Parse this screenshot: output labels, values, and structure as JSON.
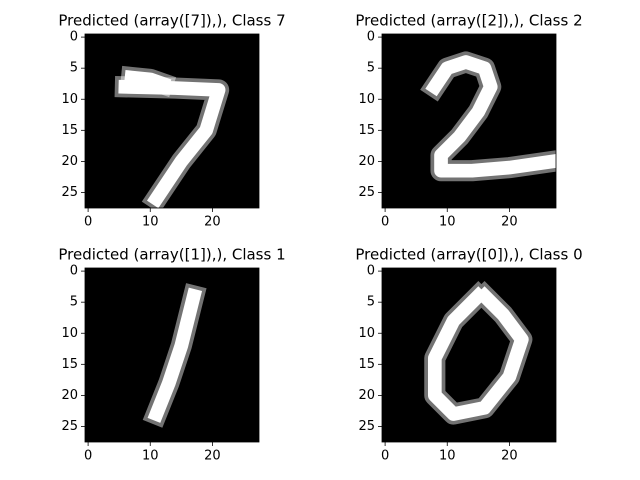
{
  "chart_data": [
    {
      "type": "image",
      "title": "Predicted (array([7]),), Class 7",
      "background": "#000000",
      "color": "#ffffff",
      "xlim": [
        -0.5,
        27.5
      ],
      "ylim": [
        27.5,
        -0.5
      ],
      "xticks": [
        0,
        10,
        20
      ],
      "yticks": [
        0,
        5,
        10,
        15,
        20,
        25
      ],
      "strokes": [
        {
          "x": [
            7,
            10,
            12
          ],
          "y": [
            6.5,
            6.8,
            7.5
          ]
        },
        {
          "x": [
            6,
            14,
            21,
            19,
            15,
            11
          ],
          "y": [
            8,
            8.2,
            8.5,
            15,
            20,
            26
          ]
        }
      ]
    },
    {
      "type": "image",
      "title": "Predicted (array([2]),), Class 2",
      "background": "#000000",
      "color": "#ffffff",
      "xlim": [
        -0.5,
        27.5
      ],
      "ylim": [
        27.5,
        -0.5
      ],
      "xticks": [
        0,
        10,
        20
      ],
      "yticks": [
        0,
        5,
        10,
        15,
        20,
        25
      ],
      "strokes": [
        {
          "x": [
            8,
            10,
            13,
            16,
            17,
            15,
            12,
            9,
            9,
            14,
            20,
            27
          ],
          "y": [
            8,
            5,
            4,
            5,
            8,
            12,
            16,
            19,
            21.5,
            21.5,
            21,
            20
          ]
        }
      ]
    },
    {
      "type": "image",
      "title": "Predicted (array([1]),), Class 1",
      "background": "#000000",
      "color": "#ffffff",
      "xlim": [
        -0.5,
        27.5
      ],
      "ylim": [
        27.5,
        -0.5
      ],
      "xticks": [
        0,
        10,
        20
      ],
      "yticks": [
        0,
        5,
        10,
        15,
        20,
        25
      ],
      "strokes": [
        {
          "x": [
            17,
            15,
            13,
            11
          ],
          "y": [
            4,
            12,
            18,
            23
          ]
        }
      ]
    },
    {
      "type": "image",
      "title": "Predicted (array([0]),), Class 0",
      "background": "#000000",
      "color": "#ffffff",
      "xlim": [
        -0.5,
        27.5
      ],
      "ylim": [
        27.5,
        -0.5
      ],
      "xticks": [
        0,
        10,
        20
      ],
      "yticks": [
        0,
        5,
        10,
        15,
        20,
        25
      ],
      "strokes": [
        {
          "x": [
            15,
            11,
            8,
            8,
            11,
            16,
            20,
            22,
            19,
            16
          ],
          "y": [
            4,
            8,
            14,
            20,
            23,
            22,
            17,
            11,
            7,
            4
          ]
        }
      ]
    }
  ]
}
